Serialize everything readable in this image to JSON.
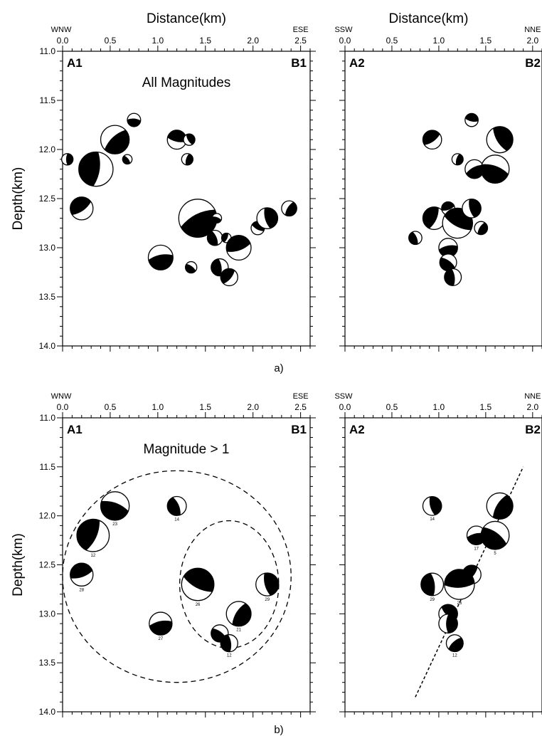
{
  "figure_labels": [
    "a)",
    "b)"
  ],
  "chart_data": [
    {
      "id": "a-left",
      "type": "scatter",
      "marker": "focal-mechanism beachball",
      "title": "All Magnitudes",
      "xlabel": "Distance(km)",
      "ylabel": "Depth(km)",
      "x_dir_left": "WNW",
      "x_dir_right": "ESE",
      "corner_left": "A1",
      "corner_right": "B1",
      "xlim": [
        0,
        2.6
      ],
      "ylim": [
        14.0,
        11.0
      ],
      "xticks": [
        "0.0",
        "0.5",
        "1.0",
        "1.5",
        "2.0",
        "2.5"
      ],
      "yticks": [
        "11.0",
        "11.5",
        "12.0",
        "12.5",
        "13.0",
        "13.5",
        "14.0"
      ],
      "points": [
        {
          "x": 0.05,
          "y": 12.1,
          "r": 0.06
        },
        {
          "x": 0.55,
          "y": 11.9,
          "r": 0.15
        },
        {
          "x": 0.75,
          "y": 11.7,
          "r": 0.07
        },
        {
          "x": 0.68,
          "y": 12.1,
          "r": 0.05
        },
        {
          "x": 0.35,
          "y": 12.2,
          "r": 0.18
        },
        {
          "x": 0.2,
          "y": 12.6,
          "r": 0.12
        },
        {
          "x": 1.2,
          "y": 11.9,
          "r": 0.1
        },
        {
          "x": 1.33,
          "y": 11.9,
          "r": 0.06
        },
        {
          "x": 1.31,
          "y": 12.1,
          "r": 0.06
        },
        {
          "x": 1.42,
          "y": 12.7,
          "r": 0.2
        },
        {
          "x": 1.62,
          "y": 12.7,
          "r": 0.05
        },
        {
          "x": 1.6,
          "y": 12.9,
          "r": 0.08
        },
        {
          "x": 1.72,
          "y": 12.9,
          "r": 0.05
        },
        {
          "x": 1.85,
          "y": 13.0,
          "r": 0.13
        },
        {
          "x": 2.05,
          "y": 12.8,
          "r": 0.07
        },
        {
          "x": 2.15,
          "y": 12.7,
          "r": 0.11
        },
        {
          "x": 2.38,
          "y": 12.6,
          "r": 0.08
        },
        {
          "x": 1.03,
          "y": 13.1,
          "r": 0.13
        },
        {
          "x": 1.35,
          "y": 13.2,
          "r": 0.06
        },
        {
          "x": 1.65,
          "y": 13.2,
          "r": 0.09
        },
        {
          "x": 1.75,
          "y": 13.3,
          "r": 0.09
        }
      ]
    },
    {
      "id": "a-right",
      "type": "scatter",
      "marker": "focal-mechanism beachball",
      "title": "",
      "xlabel": "Distance(km)",
      "ylabel": "",
      "x_dir_left": "SSW",
      "x_dir_right": "NNE",
      "corner_left": "A2",
      "corner_right": "B2",
      "xlim": [
        0,
        2.1
      ],
      "ylim": [
        14.0,
        11.0
      ],
      "xticks": [
        "0.0",
        "0.5",
        "1.0",
        "1.5",
        "2.0"
      ],
      "yticks": [],
      "points": [
        {
          "x": 0.93,
          "y": 11.9,
          "r": 0.1
        },
        {
          "x": 1.35,
          "y": 11.7,
          "r": 0.07
        },
        {
          "x": 1.65,
          "y": 11.9,
          "r": 0.14
        },
        {
          "x": 1.2,
          "y": 12.1,
          "r": 0.06
        },
        {
          "x": 1.38,
          "y": 12.2,
          "r": 0.1
        },
        {
          "x": 1.6,
          "y": 12.2,
          "r": 0.15
        },
        {
          "x": 0.75,
          "y": 12.9,
          "r": 0.07
        },
        {
          "x": 0.95,
          "y": 12.7,
          "r": 0.12
        },
        {
          "x": 1.1,
          "y": 12.6,
          "r": 0.07
        },
        {
          "x": 1.2,
          "y": 12.75,
          "r": 0.16
        },
        {
          "x": 1.35,
          "y": 12.6,
          "r": 0.1
        },
        {
          "x": 1.45,
          "y": 12.8,
          "r": 0.07
        },
        {
          "x": 1.1,
          "y": 13.0,
          "r": 0.1
        },
        {
          "x": 1.1,
          "y": 13.15,
          "r": 0.09
        },
        {
          "x": 1.15,
          "y": 13.3,
          "r": 0.09
        }
      ]
    },
    {
      "id": "b-left",
      "type": "scatter",
      "marker": "focal-mechanism beachball",
      "title": "Magnitude > 1",
      "xlabel": "",
      "ylabel": "Depth(km)",
      "x_dir_left": "WNW",
      "x_dir_right": "ESE",
      "corner_left": "A1",
      "corner_right": "B1",
      "xlim": [
        0,
        2.6
      ],
      "ylim": [
        14.0,
        11.0
      ],
      "xticks": [
        "0.0",
        "0.5",
        "1.0",
        "1.5",
        "2.0",
        "2.5"
      ],
      "yticks": [
        "11.0",
        "11.5",
        "12.0",
        "12.5",
        "13.0",
        "13.5",
        "14.0"
      ],
      "points": [
        {
          "x": 0.55,
          "y": 11.9,
          "r": 0.15,
          "label": "23"
        },
        {
          "x": 1.2,
          "y": 11.9,
          "r": 0.1,
          "label": "14"
        },
        {
          "x": 0.32,
          "y": 12.2,
          "r": 0.17,
          "label": "12"
        },
        {
          "x": 0.2,
          "y": 12.6,
          "r": 0.12,
          "label": "28"
        },
        {
          "x": 1.42,
          "y": 12.7,
          "r": 0.17,
          "label": "26"
        },
        {
          "x": 2.15,
          "y": 12.7,
          "r": 0.12,
          "label": "29"
        },
        {
          "x": 1.85,
          "y": 13.0,
          "r": 0.13,
          "label": "21"
        },
        {
          "x": 1.03,
          "y": 13.1,
          "r": 0.12,
          "label": "27"
        },
        {
          "x": 1.65,
          "y": 13.2,
          "r": 0.09,
          "label": ""
        },
        {
          "x": 1.75,
          "y": 13.3,
          "r": 0.09,
          "label": "12"
        }
      ],
      "guides": [
        {
          "cx": 1.2,
          "cy": 12.62,
          "rx": 1.2,
          "ry": 1.08
        },
        {
          "cx": 1.75,
          "cy": 12.7,
          "rx": 0.52,
          "ry": 0.65
        }
      ]
    },
    {
      "id": "b-right",
      "type": "scatter",
      "marker": "focal-mechanism beachball",
      "title": "",
      "xlabel": "",
      "ylabel": "",
      "x_dir_left": "SSW",
      "x_dir_right": "NNE",
      "corner_left": "A2",
      "corner_right": "B2",
      "xlim": [
        0,
        2.1
      ],
      "ylim": [
        14.0,
        11.0
      ],
      "xticks": [
        "0.0",
        "0.5",
        "1.0",
        "1.5",
        "2.0"
      ],
      "yticks": [],
      "points": [
        {
          "x": 0.93,
          "y": 11.9,
          "r": 0.1,
          "label": "14"
        },
        {
          "x": 1.65,
          "y": 11.9,
          "r": 0.14,
          "label": ""
        },
        {
          "x": 1.4,
          "y": 12.2,
          "r": 0.1,
          "label": "17"
        },
        {
          "x": 1.6,
          "y": 12.2,
          "r": 0.15,
          "label": "5"
        },
        {
          "x": 0.93,
          "y": 12.7,
          "r": 0.12,
          "label": "29"
        },
        {
          "x": 1.35,
          "y": 12.6,
          "r": 0.1,
          "label": ""
        },
        {
          "x": 1.22,
          "y": 12.7,
          "r": 0.16,
          "label": "26"
        },
        {
          "x": 1.1,
          "y": 13.0,
          "r": 0.1,
          "label": ""
        },
        {
          "x": 1.1,
          "y": 13.1,
          "r": 0.1,
          "label": ""
        },
        {
          "x": 1.17,
          "y": 13.3,
          "r": 0.09,
          "label": "12"
        }
      ],
      "fault_line": [
        [
          0.75,
          13.85
        ],
        [
          1.9,
          11.5
        ]
      ]
    }
  ]
}
